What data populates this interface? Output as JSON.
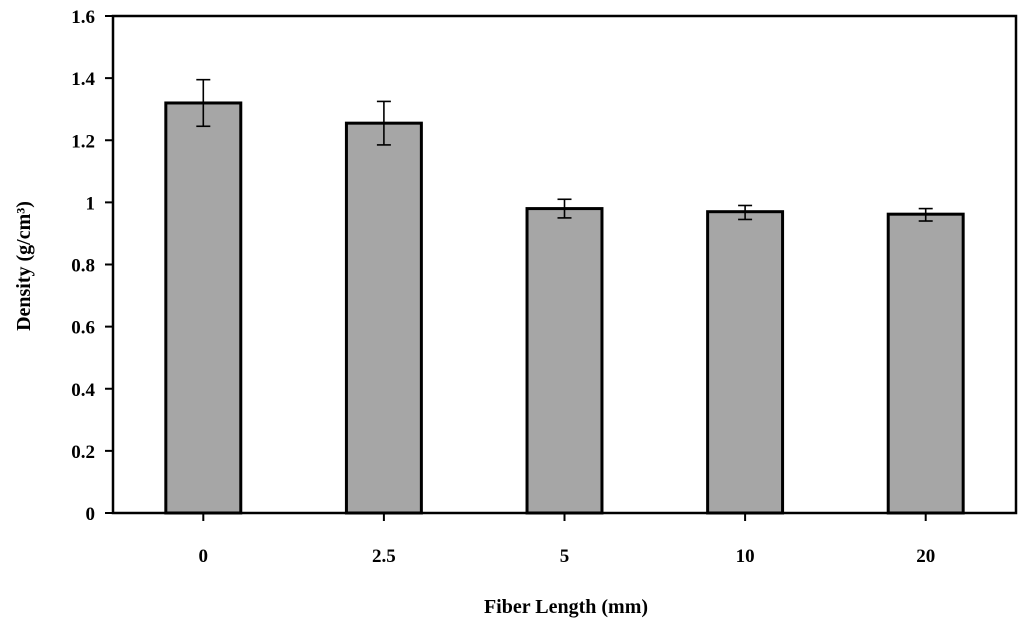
{
  "chart_data": {
    "type": "bar",
    "title": "",
    "xlabel": "Fiber Length (mm)",
    "ylabel": "Density (g/cm³)",
    "categories": [
      "0",
      "2.5",
      "5",
      "10",
      "20"
    ],
    "values": [
      1.32,
      1.255,
      0.98,
      0.97,
      0.962
    ],
    "error_low": [
      1.245,
      1.185,
      0.95,
      0.945,
      0.94
    ],
    "error_high": [
      1.395,
      1.325,
      1.01,
      0.99,
      0.98
    ],
    "ylim": [
      0,
      1.6
    ],
    "yticks": [
      "0",
      "0.2",
      "0.4",
      "0.6",
      "0.8",
      "1",
      "1.2",
      "1.4",
      "1.6"
    ],
    "grid": false,
    "colors": {
      "bar_fill": "#a6a6a6",
      "bar_stroke": "#000000",
      "axis": "#000000"
    }
  }
}
